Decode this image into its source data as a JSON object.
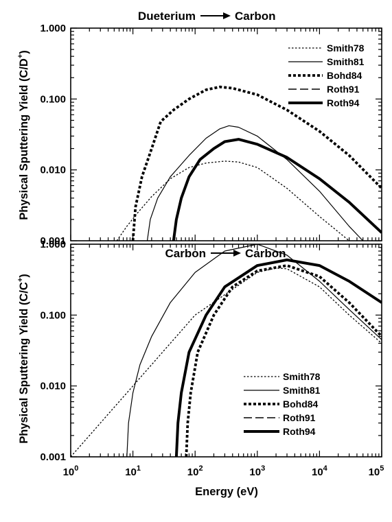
{
  "chart_data": [
    {
      "type": "line",
      "title": "Dueterium —▶ Carbon",
      "title_parts": [
        "Dueterium",
        "Carbon"
      ],
      "ylabel_main": "Physical Sputtering Yield (C/D",
      "ylabel_sup": "+",
      "ylabel_close": ")",
      "xscale": "log",
      "yscale": "log",
      "xlim": [
        1,
        100000
      ],
      "ylim": [
        0.001,
        1
      ],
      "ytick_labels": [
        "1.000",
        "0.100",
        "0.010",
        "0.001"
      ],
      "legend_position": "top-right",
      "series": [
        {
          "name": "Smith78",
          "style": "dotted-thin",
          "points": [
            [
              5.5,
              0.001
            ],
            [
              8,
              0.0016
            ],
            [
              12,
              0.0025
            ],
            [
              20,
              0.0042
            ],
            [
              40,
              0.0075
            ],
            [
              80,
              0.0108
            ],
            [
              150,
              0.0125
            ],
            [
              300,
              0.0133
            ],
            [
              500,
              0.0129
            ],
            [
              1000,
              0.0108
            ],
            [
              3000,
              0.0055
            ],
            [
              10000,
              0.0022
            ],
            [
              30000,
              0.001
            ]
          ]
        },
        {
          "name": "Smith81",
          "style": "solid-thin",
          "points": [
            [
              17,
              0.001
            ],
            [
              19,
              0.002
            ],
            [
              25,
              0.004
            ],
            [
              40,
              0.008
            ],
            [
              80,
              0.016
            ],
            [
              150,
              0.028
            ],
            [
              250,
              0.038
            ],
            [
              350,
              0.042
            ],
            [
              500,
              0.04
            ],
            [
              1000,
              0.03
            ],
            [
              3000,
              0.014
            ],
            [
              10000,
              0.005
            ],
            [
              30000,
              0.0016
            ],
            [
              50000,
              0.001
            ]
          ]
        },
        {
          "name": "Bohd84",
          "style": "dotted-thick",
          "points": [
            [
              10,
              0.001
            ],
            [
              11,
              0.003
            ],
            [
              14,
              0.008
            ],
            [
              20,
              0.02
            ],
            [
              28,
              0.048
            ],
            [
              45,
              0.07
            ],
            [
              80,
              0.1
            ],
            [
              150,
              0.135
            ],
            [
              250,
              0.148
            ],
            [
              400,
              0.142
            ],
            [
              1000,
              0.115
            ],
            [
              3000,
              0.07
            ],
            [
              10000,
              0.035
            ],
            [
              30000,
              0.016
            ],
            [
              100000,
              0.0055
            ]
          ]
        },
        {
          "name": "Roth91",
          "style": "dashed",
          "points": []
        },
        {
          "name": "Roth94",
          "style": "solid-thick",
          "points": [
            [
              45,
              0.001
            ],
            [
              50,
              0.002
            ],
            [
              60,
              0.004
            ],
            [
              80,
              0.008
            ],
            [
              120,
              0.014
            ],
            [
              200,
              0.02
            ],
            [
              300,
              0.025
            ],
            [
              500,
              0.027
            ],
            [
              1000,
              0.023
            ],
            [
              3000,
              0.015
            ],
            [
              10000,
              0.0075
            ],
            [
              30000,
              0.0035
            ],
            [
              100000,
              0.0013
            ]
          ]
        }
      ]
    },
    {
      "type": "line",
      "title": "Carbon —▶ Carbon",
      "title_parts": [
        "Carbon",
        "Carbon"
      ],
      "ylabel_main": "Physical Sputtering Yield (C/C",
      "ylabel_sup": "+",
      "ylabel_close": ")",
      "xlabel": "Energy (eV)",
      "xscale": "log",
      "yscale": "log",
      "xlim": [
        1,
        100000
      ],
      "ylim": [
        0.001,
        1
      ],
      "ytick_labels": [
        "1.000",
        "0.100",
        "0.010",
        "0.001"
      ],
      "xtick_bases": [
        "10",
        "10",
        "10",
        "10",
        "10",
        "10"
      ],
      "xtick_exps": [
        "0",
        "1",
        "2",
        "3",
        "4",
        "5"
      ],
      "legend_position": "bottom-right",
      "series": [
        {
          "name": "Smith78",
          "style": "dotted-thin",
          "points": [
            [
              1,
              0.001
            ],
            [
              10,
              0.01
            ],
            [
              100,
              0.1
            ],
            [
              1000,
              0.4
            ],
            [
              2000,
              0.46
            ],
            [
              3000,
              0.45
            ],
            [
              10000,
              0.25
            ],
            [
              30000,
              0.1
            ],
            [
              100000,
              0.04
            ]
          ]
        },
        {
          "name": "Smith81",
          "style": "solid-thin",
          "points": [
            [
              8,
              0.001
            ],
            [
              8.5,
              0.003
            ],
            [
              10,
              0.008
            ],
            [
              13,
              0.02
            ],
            [
              20,
              0.05
            ],
            [
              40,
              0.15
            ],
            [
              100,
              0.4
            ],
            [
              300,
              0.8
            ],
            [
              1000,
              1.0
            ],
            [
              3000,
              0.7
            ],
            [
              10000,
              0.3
            ],
            [
              30000,
              0.12
            ],
            [
              100000,
              0.045
            ]
          ]
        },
        {
          "name": "Bohd84",
          "style": "dotted-thick",
          "points": [
            [
              72,
              0.001
            ],
            [
              76,
              0.003
            ],
            [
              85,
              0.008
            ],
            [
              110,
              0.03
            ],
            [
              200,
              0.1
            ],
            [
              400,
              0.25
            ],
            [
              1000,
              0.42
            ],
            [
              3000,
              0.5
            ],
            [
              10000,
              0.35
            ],
            [
              30000,
              0.15
            ],
            [
              100000,
              0.05
            ]
          ]
        },
        {
          "name": "Roth91",
          "style": "dashed",
          "points": []
        },
        {
          "name": "Roth94",
          "style": "solid-thick",
          "points": [
            [
              50,
              0.001
            ],
            [
              53,
              0.003
            ],
            [
              60,
              0.008
            ],
            [
              80,
              0.03
            ],
            [
              150,
              0.1
            ],
            [
              300,
              0.25
            ],
            [
              1000,
              0.5
            ],
            [
              3000,
              0.6
            ],
            [
              10000,
              0.5
            ],
            [
              30000,
              0.3
            ],
            [
              100000,
              0.15
            ]
          ]
        }
      ]
    }
  ]
}
